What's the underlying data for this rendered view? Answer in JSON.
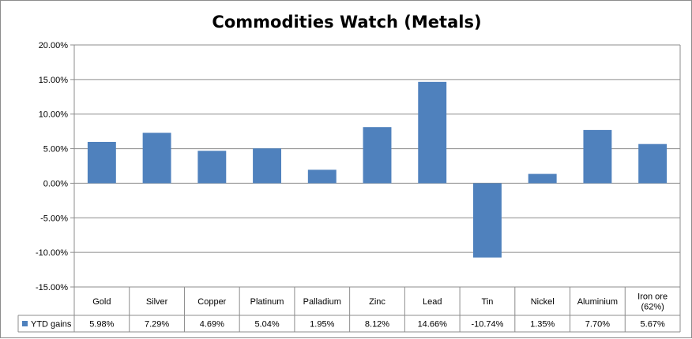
{
  "chart_data": {
    "type": "bar",
    "title": "Commodities Watch (Metals)",
    "categories": [
      "Gold",
      "Silver",
      "Copper",
      "Platinum",
      "Palladium",
      "Zinc",
      "Lead",
      "Tin",
      "Nickel",
      "Aluminium",
      "Iron ore (62%)"
    ],
    "category_lines": [
      [
        "Gold"
      ],
      [
        "Silver"
      ],
      [
        "Copper"
      ],
      [
        "Platinum"
      ],
      [
        "Palladium"
      ],
      [
        "Zinc"
      ],
      [
        "Lead"
      ],
      [
        "Tin"
      ],
      [
        "Nickel"
      ],
      [
        "Aluminium"
      ],
      [
        "Iron ore",
        "(62%)"
      ]
    ],
    "series": [
      {
        "name": "YTD gains",
        "values": [
          5.98,
          7.29,
          4.69,
          5.04,
          1.95,
          8.12,
          14.66,
          -10.74,
          1.35,
          7.7,
          5.67
        ],
        "labels": [
          "5.98%",
          "7.29%",
          "4.69%",
          "5.04%",
          "1.95%",
          "8.12%",
          "14.66%",
          "-10.74%",
          "1.35%",
          "7.70%",
          "5.67%"
        ],
        "color": "#4f81bd"
      }
    ],
    "y_ticks": [
      20,
      15,
      10,
      5,
      0,
      -5,
      -10,
      -15
    ],
    "y_tick_labels": [
      "20.00%",
      "15.00%",
      "10.00%",
      "5.00%",
      "0.00%",
      "-5.00%",
      "-10.00%",
      "-15.00%"
    ],
    "ylim": [
      -15,
      20
    ],
    "grid": true,
    "legend": "data-table",
    "xlabel": "",
    "ylabel": ""
  }
}
